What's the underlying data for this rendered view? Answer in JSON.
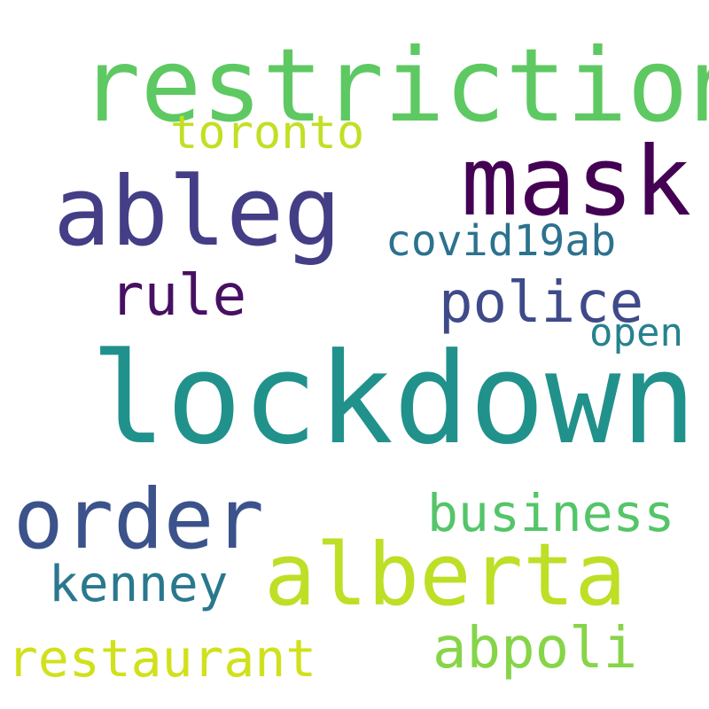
{
  "words": [
    {
      "text": "restriction",
      "color": "#5ec962"
    },
    {
      "text": "toronto",
      "color": "#c2df23"
    },
    {
      "text": "mask",
      "color": "#440154"
    },
    {
      "text": "ableg",
      "color": "#433e85"
    },
    {
      "text": "covid19ab",
      "color": "#2c728e"
    },
    {
      "text": "rule",
      "color": "#471063"
    },
    {
      "text": "police",
      "color": "#3e4a89"
    },
    {
      "text": "open",
      "color": "#26828e"
    },
    {
      "text": "lockdown",
      "color": "#21918c"
    },
    {
      "text": "order",
      "color": "#3b528b"
    },
    {
      "text": "business",
      "color": "#54c568"
    },
    {
      "text": "alberta",
      "color": "#bddf26"
    },
    {
      "text": "kenney",
      "color": "#2a788e"
    },
    {
      "text": "abpoli",
      "color": "#86d549"
    },
    {
      "text": "restaurant",
      "color": "#d0e11c"
    }
  ]
}
